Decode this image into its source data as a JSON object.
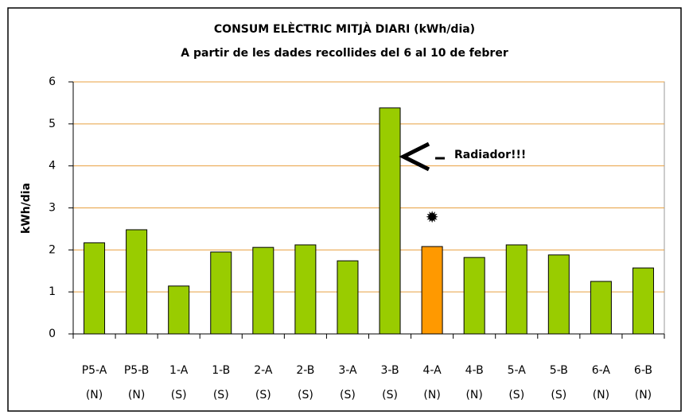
{
  "chart_data": {
    "type": "bar",
    "title": "CONSUM ELÈCTRIC MITJÀ DIARI (kWh/dia)",
    "subtitle": "A partir de les dades recollides del 6 al 10 de febrer",
    "y_label": "kWh/dia",
    "categories": [
      [
        "P5-A",
        "(N)"
      ],
      [
        "P5-B",
        "(N)"
      ],
      [
        "1-A",
        "(S)"
      ],
      [
        "1-B",
        "(S)"
      ],
      [
        "2-A",
        "(S)"
      ],
      [
        "2-B",
        "(S)"
      ],
      [
        "3-A",
        "(S)"
      ],
      [
        "3-B",
        "(S)"
      ],
      [
        "4-A",
        "(N)"
      ],
      [
        "4-B",
        "(N)"
      ],
      [
        "5-A",
        "(S)"
      ],
      [
        "5-B",
        "(S)"
      ],
      [
        "6-A",
        "(N)"
      ],
      [
        "6-B",
        "(N)"
      ]
    ],
    "values": [
      2.17,
      2.48,
      1.14,
      1.95,
      2.06,
      2.12,
      1.74,
      5.38,
      2.08,
      1.82,
      2.12,
      1.88,
      1.25,
      1.57
    ],
    "colors": [
      "#99cc00",
      "#99cc00",
      "#99cc00",
      "#99cc00",
      "#99cc00",
      "#99cc00",
      "#99cc00",
      "#99cc00",
      "#ff9900",
      "#99cc00",
      "#99cc00",
      "#99cc00",
      "#99cc00",
      "#99cc00"
    ],
    "annotations": [
      {
        "text": "Radiador!!!"
      },
      {
        "text": "✹"
      }
    ],
    "ylim": [
      0,
      6
    ],
    "yticks": [
      0,
      1,
      2,
      3,
      4,
      5,
      6
    ],
    "grid": true
  }
}
